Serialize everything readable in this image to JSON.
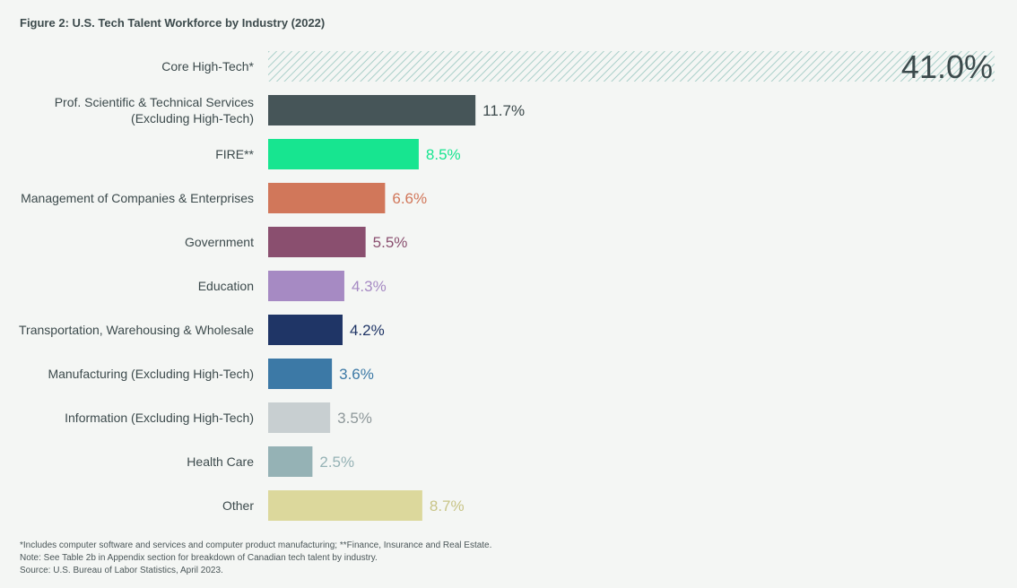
{
  "chart_data": {
    "type": "bar",
    "orientation": "horizontal",
    "title": "Figure 2: U.S. Tech Talent Workforce by Industry (2022)",
    "unit": "%",
    "categories": [
      [
        "Core High-Tech*"
      ],
      [
        "Prof. Scientific & Technical Services",
        "(Excluding High-Tech)"
      ],
      [
        "FIRE**"
      ],
      [
        "Management of Companies & Enterprises"
      ],
      [
        "Government"
      ],
      [
        "Education"
      ],
      [
        "Transportation, Warehousing & Wholesale"
      ],
      [
        "Manufacturing (Excluding High-Tech)"
      ],
      [
        "Information (Excluding High-Tech)"
      ],
      [
        "Health Care"
      ],
      [
        "Other"
      ]
    ],
    "values": [
      41.0,
      11.7,
      8.5,
      6.6,
      5.5,
      4.3,
      4.2,
      3.6,
      3.5,
      2.5,
      8.7
    ],
    "value_labels": [
      "41.0%",
      "11.7%",
      "8.5%",
      "6.6%",
      "5.5%",
      "4.3%",
      "4.2%",
      "3.6%",
      "3.5%",
      "2.5%",
      "8.7%"
    ],
    "colors": [
      "#a9cfc9",
      "#465558",
      "#17e590",
      "#d1775a",
      "#8a4f6f",
      "#a68ac3",
      "#1f3566",
      "#3c79a6",
      "#c8cfd1",
      "#95b2b5",
      "#dcd89c"
    ],
    "label_colors": [
      "#3c4a4c",
      "#3c4a4c",
      "#17e590",
      "#d1775a",
      "#8a4f6f",
      "#a68ac3",
      "#1f3566",
      "#3c79a6",
      "#8e989a",
      "#95b2b5",
      "#c8c486"
    ],
    "hatched": [
      true,
      false,
      false,
      false,
      false,
      false,
      false,
      false,
      false,
      false,
      false
    ],
    "xlim": [
      0,
      41.0
    ],
    "grid": false,
    "legend": "none"
  },
  "footnotes": {
    "line1": "*Includes computer software and services and computer product manufacturing; **Finance, Insurance and Real Estate.",
    "line2": "Note: See Table 2b in Appendix section for breakdown of Canadian tech talent by industry.",
    "line3": "Source: U.S. Bureau of Labor Statistics, April 2023."
  }
}
